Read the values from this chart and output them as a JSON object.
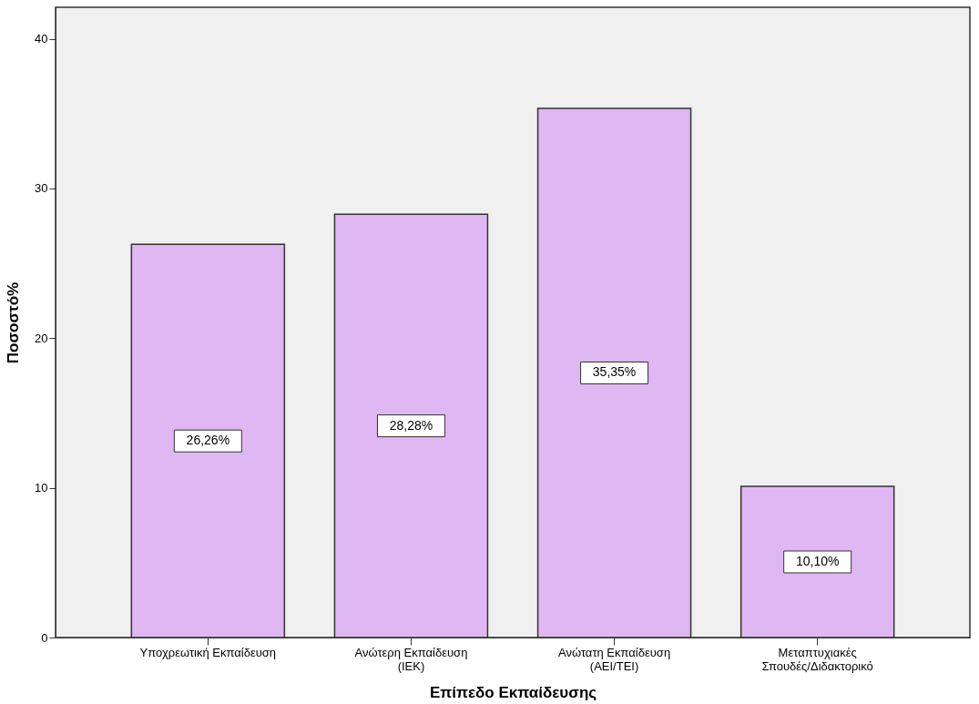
{
  "chart_data": {
    "type": "bar",
    "xlabel": "Επίπεδο Εκπαίδευσης",
    "ylabel": "Ποσοστό%",
    "categories": [
      "Υποχρεωτική Εκπαίδευση",
      "Ανώτερη Εκπαίδευση\n(ΙΕΚ)",
      "Ανώτατη Εκπαίδευση\n(ΑΕΙ/ΤΕΙ)",
      "Μεταπτυχιακές\nΣπουδές/Διδακτορικό"
    ],
    "values": [
      26.26,
      28.28,
      35.35,
      10.1
    ],
    "value_labels": [
      "26,26%",
      "28,28%",
      "35,35%",
      "10,10%"
    ],
    "color": "#dfb7f2",
    "ylim": [
      0,
      42.1
    ],
    "yticks": [
      0,
      10,
      20,
      30,
      40
    ],
    "grid": false
  }
}
